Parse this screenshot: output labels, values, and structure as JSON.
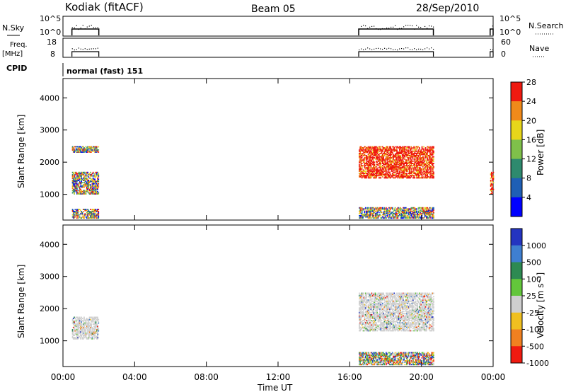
{
  "header": {
    "station": "Kodiak (fitACF)",
    "beam": "Beam 05",
    "date": "28/Sep/2010"
  },
  "top_panels": {
    "nsky_label": "N.Sky",
    "nsky_ticks": [
      "10^5",
      "10^0"
    ],
    "nsearch_label": "N.Search",
    "nsearch_ticks": [
      "10^5",
      "10^0"
    ],
    "freq_label": "Freq.",
    "freq_unit": "[MHz]",
    "freq_ticks": [
      "18",
      "8"
    ],
    "nave_label": "Nave",
    "nave_ticks": [
      "60",
      "0"
    ],
    "cpid_label": "CPID",
    "cpid_value": "normal (fast) 151"
  },
  "chart_data": [
    {
      "type": "heatmap",
      "panel": "power",
      "ylabel": "Slant Range [km]",
      "yticks": [
        "1000",
        "2000",
        "3000",
        "4000"
      ],
      "ylim": [
        200,
        4600
      ],
      "colorbar_label": "Power [dB]",
      "colorbar_ticks": [
        "4",
        "8",
        "12",
        "16",
        "20",
        "24",
        "28"
      ],
      "colorbar_colors": [
        "#0000ff",
        "#1f5fb5",
        "#2e8a6e",
        "#7fc04a",
        "#e7d61a",
        "#f08a1a",
        "#ef1a10"
      ],
      "regions": [
        {
          "t_start": "00:30",
          "t_end": "02:00",
          "r_start": 1000,
          "r_end": 1700,
          "level": "mixed"
        },
        {
          "t_start": "00:30",
          "t_end": "02:00",
          "r_start": 2300,
          "r_end": 2500,
          "level": "mixed"
        },
        {
          "t_start": "00:30",
          "t_end": "02:00",
          "r_start": 250,
          "r_end": 550,
          "level": "mixed"
        },
        {
          "t_start": "16:30",
          "t_end": "20:40",
          "r_start": 1500,
          "r_end": 2500,
          "level": "high"
        },
        {
          "t_start": "16:30",
          "t_end": "20:40",
          "r_start": 250,
          "r_end": 600,
          "level": "mixed"
        },
        {
          "t_start": "23:50",
          "t_end": "24:00",
          "r_start": 1000,
          "r_end": 1700,
          "level": "high"
        }
      ]
    },
    {
      "type": "heatmap",
      "panel": "velocity",
      "xlabel": "Time UT",
      "xticks": [
        "00:00",
        "04:00",
        "08:00",
        "12:00",
        "16:00",
        "20:00",
        "00:00"
      ],
      "ylabel": "Slant Range [km]",
      "yticks": [
        "1000",
        "2000",
        "3000",
        "4000"
      ],
      "ylim": [
        200,
        4600
      ],
      "colorbar_label": "Velocity [m s⁻¹]",
      "colorbar_ticks": [
        "1000",
        "500",
        "100",
        "25",
        "-25",
        "-100",
        "-500",
        "-1000"
      ],
      "colorbar_colors": [
        "#2434c0",
        "#3f7fd0",
        "#2d8a52",
        "#63c63b",
        "#cfcfcf",
        "#f0c020",
        "#f08020",
        "#ef1a10"
      ],
      "regions": [
        {
          "t_start": "00:30",
          "t_end": "02:00",
          "r_start": 1050,
          "r_end": 1750,
          "level": "ground"
        },
        {
          "t_start": "16:30",
          "t_end": "20:40",
          "r_start": 1300,
          "r_end": 2500,
          "level": "ground"
        },
        {
          "t_start": "16:30",
          "t_end": "20:40",
          "r_start": 250,
          "r_end": 650,
          "level": "mixed"
        }
      ]
    }
  ]
}
